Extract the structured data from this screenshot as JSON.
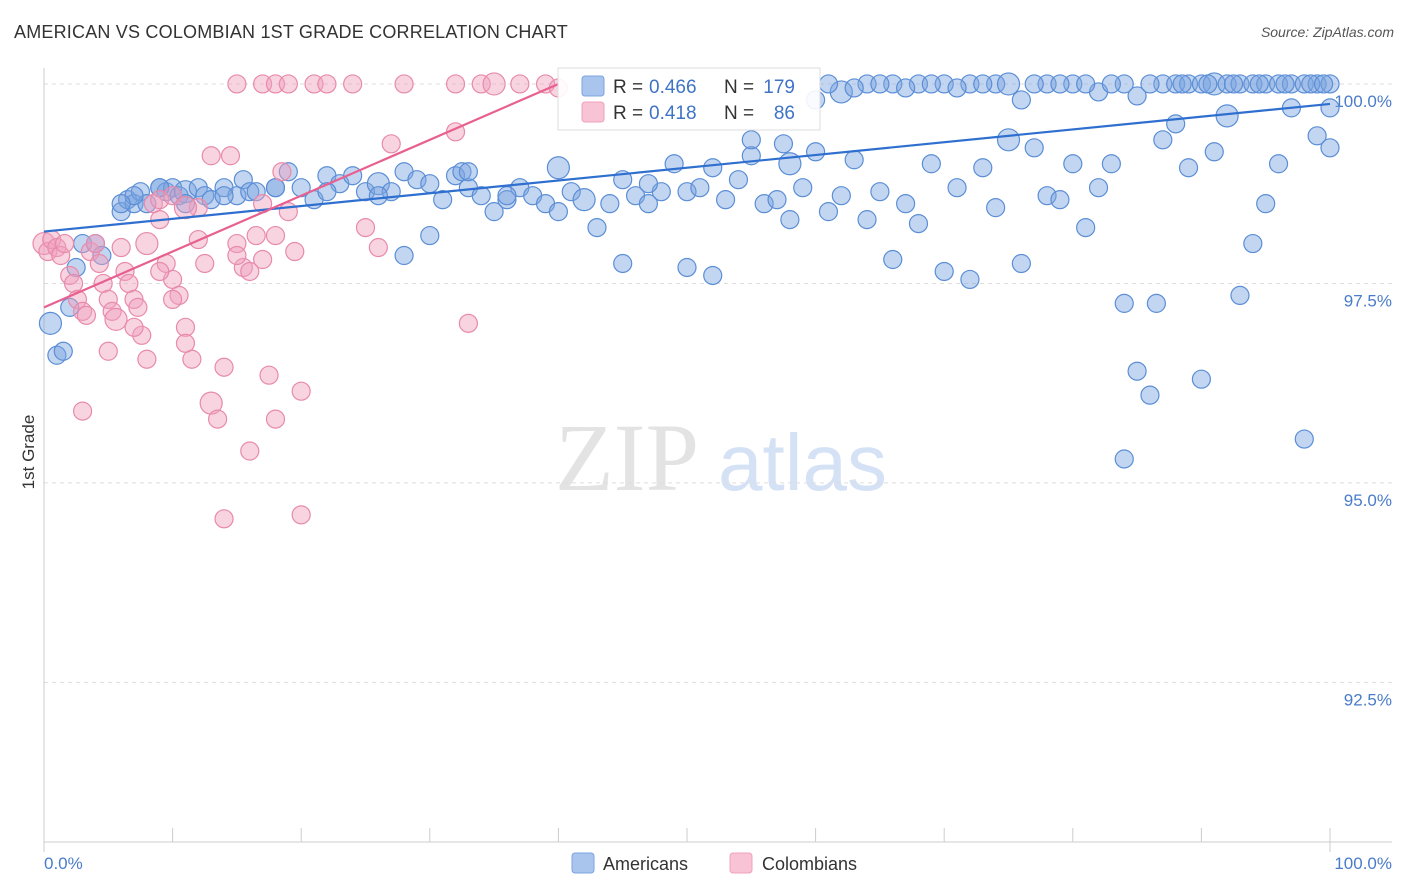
{
  "title": "AMERICAN VS COLOMBIAN 1ST GRADE CORRELATION CHART",
  "source": "Source: ZipAtlas.com",
  "watermark": {
    "zip": "ZIP",
    "atlas": "atlas"
  },
  "chart_data": {
    "type": "scatter",
    "title": "AMERICAN VS COLOMBIAN 1ST GRADE CORRELATION CHART",
    "xlabel": "",
    "ylabel": "1st Grade",
    "xlim": [
      0,
      100
    ],
    "ylim": [
      90.5,
      100.2
    ],
    "x_tick_labels": [
      "0.0%",
      "100.0%"
    ],
    "y_ticks": [
      92.5,
      95.0,
      97.5,
      100.0
    ],
    "y_tick_labels": [
      "92.5%",
      "95.0%",
      "97.5%",
      "100.0%"
    ],
    "grid": true,
    "legend": {
      "position": "top-center",
      "entries": [
        {
          "r_label": "R =",
          "r_value": "0.466",
          "n_label": "N =",
          "n_value": "179"
        },
        {
          "r_label": "R =",
          "r_value": "0.418",
          "n_label": "N =",
          "n_value": "86"
        }
      ]
    },
    "series": [
      {
        "name": "Americans",
        "color": "#7ba3e0",
        "line_color": "#2f6fcf",
        "trend": [
          [
            0,
            98.15
          ],
          [
            100,
            99.75
          ]
        ],
        "points": [
          [
            0.5,
            97.0
          ],
          [
            1,
            96.6
          ],
          [
            1.5,
            96.65
          ],
          [
            2,
            97.2
          ],
          [
            2.5,
            97.7
          ],
          [
            3,
            98.0
          ],
          [
            4,
            98.0
          ],
          [
            4.5,
            97.85
          ],
          [
            6,
            98.4
          ],
          [
            6.5,
            98.55
          ],
          [
            7,
            98.5
          ],
          [
            7.5,
            98.65
          ],
          [
            8,
            98.5
          ],
          [
            9,
            98.7
          ],
          [
            9.5,
            98.65
          ],
          [
            10,
            98.7
          ],
          [
            10.5,
            98.6
          ],
          [
            11,
            98.65
          ],
          [
            12,
            98.7
          ],
          [
            12.5,
            98.6
          ],
          [
            13,
            98.55
          ],
          [
            14,
            98.7
          ],
          [
            15,
            98.6
          ],
          [
            15.5,
            98.8
          ],
          [
            16,
            98.65
          ],
          [
            16.5,
            98.65
          ],
          [
            18,
            98.7
          ],
          [
            19,
            98.9
          ],
          [
            20,
            98.7
          ],
          [
            21,
            98.55
          ],
          [
            22,
            98.85
          ],
          [
            23,
            98.75
          ],
          [
            24,
            98.85
          ],
          [
            25,
            98.65
          ],
          [
            26,
            98.75
          ],
          [
            27,
            98.65
          ],
          [
            28,
            98.9
          ],
          [
            29,
            98.8
          ],
          [
            30,
            98.75
          ],
          [
            31,
            98.55
          ],
          [
            32,
            98.85
          ],
          [
            32.5,
            98.9
          ],
          [
            33,
            98.7
          ],
          [
            34,
            98.6
          ],
          [
            35,
            98.4
          ],
          [
            36,
            98.55
          ],
          [
            37,
            98.7
          ],
          [
            38,
            98.6
          ],
          [
            39,
            98.5
          ],
          [
            40,
            98.4
          ],
          [
            41,
            98.65
          ],
          [
            42,
            98.55
          ],
          [
            43,
            98.2
          ],
          [
            44,
            98.5
          ],
          [
            45,
            98.8
          ],
          [
            46,
            98.6
          ],
          [
            47,
            98.5
          ],
          [
            48,
            98.65
          ],
          [
            49,
            99.0
          ],
          [
            50,
            98.65
          ],
          [
            51,
            98.7
          ],
          [
            52,
            98.95
          ],
          [
            53,
            98.55
          ],
          [
            54,
            98.8
          ],
          [
            55,
            99.1
          ],
          [
            56,
            98.5
          ],
          [
            57,
            98.55
          ],
          [
            57.5,
            99.25
          ],
          [
            58,
            99.0
          ],
          [
            59,
            98.7
          ],
          [
            60,
            99.15
          ],
          [
            61,
            98.4
          ],
          [
            62,
            98.6
          ],
          [
            63,
            99.05
          ],
          [
            64,
            98.3
          ],
          [
            65,
            98.65
          ],
          [
            66,
            97.8
          ],
          [
            67,
            98.5
          ],
          [
            68,
            98.25
          ],
          [
            69,
            99.0
          ],
          [
            70,
            97.65
          ],
          [
            71,
            98.7
          ],
          [
            72,
            97.55
          ],
          [
            73,
            98.95
          ],
          [
            74,
            98.45
          ],
          [
            75,
            99.3
          ],
          [
            76,
            97.75
          ],
          [
            77,
            99.2
          ],
          [
            78,
            98.6
          ],
          [
            79,
            98.55
          ],
          [
            80,
            99.0
          ],
          [
            81,
            98.2
          ],
          [
            82,
            98.7
          ],
          [
            83,
            99.0
          ],
          [
            84,
            97.25
          ],
          [
            85,
            96.4
          ],
          [
            86,
            96.1
          ],
          [
            87,
            99.3
          ],
          [
            88,
            99.5
          ],
          [
            89,
            98.95
          ],
          [
            90,
            96.3
          ],
          [
            91,
            99.15
          ],
          [
            92,
            99.6
          ],
          [
            93,
            97.35
          ],
          [
            94,
            98.0
          ],
          [
            95,
            98.5
          ],
          [
            96,
            99.0
          ],
          [
            97,
            99.7
          ],
          [
            98,
            95.55
          ],
          [
            99,
            99.35
          ],
          [
            100,
            99.2
          ],
          [
            86.5,
            97.25
          ],
          [
            84,
            95.3
          ],
          [
            28,
            97.85
          ],
          [
            30,
            98.1
          ],
          [
            45,
            97.75
          ],
          [
            50,
            97.7
          ],
          [
            55,
            99.3
          ],
          [
            60,
            99.8
          ],
          [
            62,
            99.9
          ],
          [
            64,
            100.0
          ],
          [
            66,
            100.0
          ],
          [
            68,
            100.0
          ],
          [
            70,
            100.0
          ],
          [
            72,
            100.0
          ],
          [
            74,
            100.0
          ],
          [
            76,
            99.8
          ],
          [
            78,
            100.0
          ],
          [
            80,
            100.0
          ],
          [
            82,
            99.9
          ],
          [
            84,
            100.0
          ],
          [
            85,
            99.85
          ],
          [
            87,
            100.0
          ],
          [
            88,
            100.0
          ],
          [
            89,
            100.0
          ],
          [
            90,
            100.0
          ],
          [
            91,
            100.0
          ],
          [
            92,
            100.0
          ],
          [
            93,
            100.0
          ],
          [
            94,
            100.0
          ],
          [
            95,
            100.0
          ],
          [
            96,
            100.0
          ],
          [
            97,
            100.0
          ],
          [
            98,
            100.0
          ],
          [
            99,
            100.0
          ],
          [
            100,
            100.0
          ],
          [
            61,
            100.0
          ],
          [
            63,
            99.95
          ],
          [
            65,
            100.0
          ],
          [
            67,
            99.95
          ],
          [
            69,
            100.0
          ],
          [
            71,
            99.95
          ],
          [
            73,
            100.0
          ],
          [
            75,
            100.0
          ],
          [
            77,
            100.0
          ],
          [
            79,
            100.0
          ],
          [
            81,
            100.0
          ],
          [
            83,
            100.0
          ],
          [
            86,
            100.0
          ],
          [
            88.5,
            100.0
          ],
          [
            90.5,
            100.0
          ],
          [
            92.5,
            100.0
          ],
          [
            94.5,
            100.0
          ],
          [
            96.5,
            100.0
          ],
          [
            98.5,
            100.0
          ],
          [
            99.5,
            100.0
          ],
          [
            100,
            99.7
          ],
          [
            58,
            98.3
          ],
          [
            52,
            97.6
          ],
          [
            47,
            98.75
          ],
          [
            40,
            98.95
          ],
          [
            36,
            98.6
          ],
          [
            33,
            98.9
          ],
          [
            26,
            98.6
          ],
          [
            22,
            98.65
          ],
          [
            18,
            98.7
          ],
          [
            14,
            98.6
          ],
          [
            11,
            98.5
          ],
          [
            9,
            98.7
          ],
          [
            7,
            98.6
          ],
          [
            6,
            98.5
          ]
        ]
      },
      {
        "name": "Colombians",
        "color": "#f0a0bd",
        "line_color": "#e8608f",
        "trend": [
          [
            0,
            97.2
          ],
          [
            40,
            100.0
          ]
        ],
        "points": [
          [
            0,
            98.0
          ],
          [
            0.3,
            97.9
          ],
          [
            0.6,
            98.05
          ],
          [
            1,
            97.95
          ],
          [
            1.3,
            97.85
          ],
          [
            1.6,
            98.0
          ],
          [
            2,
            97.6
          ],
          [
            2.3,
            97.5
          ],
          [
            2.6,
            97.3
          ],
          [
            3,
            97.15
          ],
          [
            3.3,
            97.1
          ],
          [
            3.6,
            97.9
          ],
          [
            4,
            98.0
          ],
          [
            4.3,
            97.75
          ],
          [
            4.6,
            97.5
          ],
          [
            5,
            97.3
          ],
          [
            5.3,
            97.15
          ],
          [
            5.6,
            97.05
          ],
          [
            6,
            97.95
          ],
          [
            6.3,
            97.65
          ],
          [
            6.6,
            97.5
          ],
          [
            7,
            97.3
          ],
          [
            7.3,
            97.2
          ],
          [
            7.6,
            96.85
          ],
          [
            8,
            96.55
          ],
          [
            8.5,
            98.5
          ],
          [
            9,
            98.3
          ],
          [
            9.5,
            97.75
          ],
          [
            10,
            97.55
          ],
          [
            10.5,
            97.35
          ],
          [
            11,
            96.95
          ],
          [
            11.5,
            96.55
          ],
          [
            12,
            98.45
          ],
          [
            12.5,
            97.75
          ],
          [
            13,
            96.0
          ],
          [
            13.5,
            95.8
          ],
          [
            14,
            96.45
          ],
          [
            14.5,
            99.1
          ],
          [
            15,
            98.0
          ],
          [
            15.5,
            97.7
          ],
          [
            16,
            95.4
          ],
          [
            16.5,
            98.1
          ],
          [
            17,
            97.8
          ],
          [
            17.5,
            96.35
          ],
          [
            18,
            95.8
          ],
          [
            18.5,
            98.9
          ],
          [
            19,
            98.4
          ],
          [
            19.5,
            97.9
          ],
          [
            20,
            96.15
          ],
          [
            9,
            98.55
          ],
          [
            10,
            98.6
          ],
          [
            11,
            98.45
          ],
          [
            12,
            98.05
          ],
          [
            13,
            99.1
          ],
          [
            14,
            94.55
          ],
          [
            15,
            97.85
          ],
          [
            16,
            97.65
          ],
          [
            17,
            98.5
          ],
          [
            18,
            98.1
          ],
          [
            20,
            94.6
          ],
          [
            25,
            98.2
          ],
          [
            26,
            97.95
          ],
          [
            27,
            99.25
          ],
          [
            32,
            99.4
          ],
          [
            33,
            97.0
          ],
          [
            3,
            95.9
          ],
          [
            5,
            96.65
          ],
          [
            7,
            96.95
          ],
          [
            8,
            98.0
          ],
          [
            9,
            97.65
          ],
          [
            10,
            97.3
          ],
          [
            11,
            96.75
          ],
          [
            15,
            100.0
          ],
          [
            17,
            100.0
          ],
          [
            18,
            100.0
          ],
          [
            19,
            100.0
          ],
          [
            21,
            100.0
          ],
          [
            22,
            100.0
          ],
          [
            24,
            100.0
          ],
          [
            28,
            100.0
          ],
          [
            32,
            100.0
          ],
          [
            34,
            100.0
          ],
          [
            37,
            100.0
          ],
          [
            39,
            100.0
          ],
          [
            40,
            99.95
          ],
          [
            35,
            100.0
          ]
        ]
      }
    ]
  },
  "bottom_legend": {
    "items": [
      {
        "label": "Americans"
      },
      {
        "label": "Colombians"
      }
    ]
  }
}
